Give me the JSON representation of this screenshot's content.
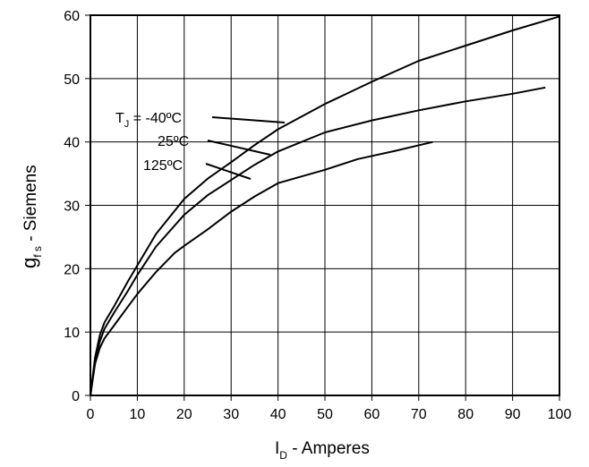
{
  "chart_data": {
    "type": "line",
    "grid": true,
    "xlim": [
      0,
      100
    ],
    "ylim": [
      0,
      60
    ],
    "xticks": [
      0,
      10,
      20,
      30,
      40,
      50,
      60,
      70,
      80,
      90,
      100
    ],
    "yticks": [
      0,
      10,
      20,
      30,
      40,
      50,
      60
    ],
    "xlabel": {
      "main": "I",
      "sub": "D",
      "rest": " - Amperes"
    },
    "ylabel": {
      "main": "g",
      "sub": "f s",
      "rest": " - Siemens"
    },
    "series": [
      {
        "name": "-40ºC",
        "x": [
          0,
          1,
          2,
          3,
          5,
          8,
          10,
          14,
          20,
          25,
          30,
          35,
          40,
          50,
          60,
          70,
          80,
          90,
          100
        ],
        "y": [
          0,
          6,
          9.5,
          11.5,
          14,
          18,
          20.5,
          25.5,
          31,
          34.2,
          36.8,
          39.5,
          42,
          46,
          49.5,
          52.8,
          55.2,
          57.6,
          59.8
        ]
      },
      {
        "name": "25ºC",
        "x": [
          0,
          1,
          2,
          3,
          5,
          8,
          10,
          14,
          20,
          25,
          30,
          35,
          40,
          50,
          60,
          70,
          80,
          90,
          97
        ],
        "y": [
          0,
          5.5,
          8.5,
          10.5,
          13,
          16.5,
          19,
          23.5,
          28.5,
          31.6,
          34,
          36.4,
          38.5,
          41.5,
          43.4,
          45,
          46.4,
          47.6,
          48.6
        ]
      },
      {
        "name": "125ºC",
        "x": [
          0,
          1,
          2,
          3,
          5,
          8,
          10,
          14,
          18,
          20,
          25,
          30,
          35,
          40,
          50,
          57,
          65,
          73
        ],
        "y": [
          0,
          5,
          7.5,
          9,
          11,
          14,
          16,
          19.5,
          22.5,
          23.6,
          26.2,
          29,
          31.4,
          33.5,
          35.6,
          37.3,
          38.6,
          40
        ]
      }
    ],
    "annotations": [
      {
        "prefix": "T",
        "sub": "J",
        "text": " = -40ºC"
      },
      {
        "text": "25ºC"
      },
      {
        "text": "125ºC"
      }
    ]
  }
}
